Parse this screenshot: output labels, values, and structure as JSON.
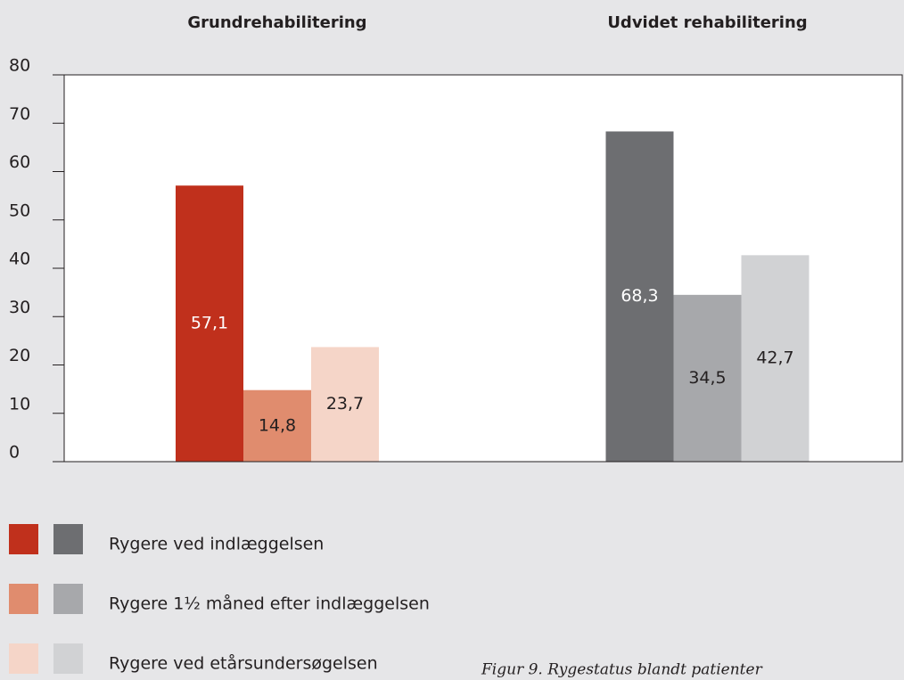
{
  "chart_data": {
    "type": "bar",
    "categories": [
      "Grundrehabilitering",
      "Udvidet rehabilitering"
    ],
    "series": [
      {
        "name": "Rygere ved indlæggelsen",
        "color": [
          "#c0301c",
          "#6d6e71"
        ],
        "values": [
          57.1,
          68.3
        ],
        "value_labels": [
          "57,1",
          "68,3"
        ]
      },
      {
        "name": "Rygere 1½ måned efter indlæggelsen",
        "color": [
          "#e08c6e",
          "#a7a8ab"
        ],
        "values": [
          14.8,
          34.5
        ],
        "value_labels": [
          "14,8",
          "34,5"
        ]
      },
      {
        "name": "Rygere ved etårsundersøgelsen",
        "color": [
          "#f5d5c8",
          "#d1d2d4"
        ],
        "values": [
          23.7,
          42.7
        ],
        "value_labels": [
          "23,7",
          "42,7"
        ]
      }
    ],
    "ylim": [
      0,
      80
    ],
    "yticks": [
      0,
      10,
      20,
      30,
      40,
      50,
      60,
      70,
      80
    ],
    "caption": "Figur 9. Rygestatus blandt patienter"
  }
}
